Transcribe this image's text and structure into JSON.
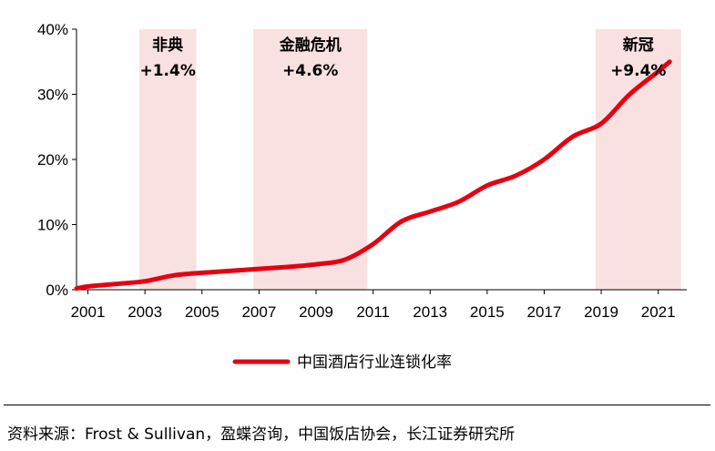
{
  "chart_data": {
    "type": "line",
    "title": "",
    "xlabel": "",
    "ylabel": "",
    "x_ticks": [
      "2001",
      "2003",
      "2005",
      "2007",
      "2009",
      "2011",
      "2013",
      "2015",
      "2017",
      "2019",
      "2021"
    ],
    "xlim": [
      2000.6,
      2022.0
    ],
    "ylim": [
      0,
      40
    ],
    "y_ticks": [
      "0%",
      "10%",
      "20%",
      "30%",
      "40%"
    ],
    "series": [
      {
        "name": "中国酒店行业连锁化率",
        "color": "#e60012",
        "x": [
          2000.6,
          2001,
          2002,
          2003,
          2004,
          2005,
          2006,
          2007,
          2008,
          2009,
          2010,
          2011,
          2012,
          2013,
          2014,
          2015,
          2016,
          2017,
          2018,
          2019,
          2020,
          2021,
          2021.4
        ],
        "y": [
          0.2,
          0.5,
          0.9,
          1.3,
          2.2,
          2.6,
          2.9,
          3.2,
          3.5,
          3.9,
          4.6,
          7.0,
          10.5,
          12.0,
          13.5,
          16.0,
          17.5,
          20.0,
          23.5,
          25.5,
          30.0,
          33.5,
          35.0
        ]
      }
    ],
    "shaded_periods": [
      {
        "label": "非典",
        "change": "+1.4%",
        "start": 2002.8,
        "end": 2004.8
      },
      {
        "label": "金融危机",
        "change": "+4.6%",
        "start": 2006.8,
        "end": 2010.8
      },
      {
        "label": "新冠",
        "change": "+9.4%",
        "start": 2018.8,
        "end": 2021.8
      }
    ],
    "shade_color": "#f9e1e1",
    "grid": false,
    "legend_position": "bottom"
  },
  "source": "资料来源：Frost & Sullivan，盈蝶咨询，中国饭店协会，长江证券研究所"
}
